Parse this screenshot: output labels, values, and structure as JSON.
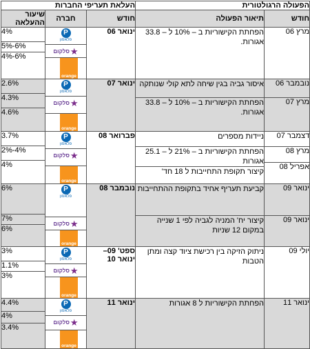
{
  "titles": {
    "regulatory": "הפעולה הרגולטורית",
    "companies": "העלאת תעריפי החברות"
  },
  "headers": {
    "month_right": "חודש",
    "action_desc": "תיאור הפעולה",
    "month_mid": "חודש",
    "company": "חברה",
    "increase_rate": "שיעור ההעלאה"
  },
  "logos": {
    "pele_symbol": "P",
    "pele_text": "פלאפון",
    "cellcom_text": "סלקום",
    "orange_text": "orange"
  },
  "colors": {
    "shade": "#d9d9d9",
    "pelephone": "#0a68b4",
    "cellcom": "#7b2d8b",
    "orange": "#f7941d"
  },
  "groups": [
    {
      "month": "ינואר 06",
      "shaded": false,
      "actions": [
        {
          "month": "מרץ 06",
          "desc": "הפחתת הקישוריות ב – 10% ל – 33.8 אגורות."
        }
      ],
      "rates": [
        "4%",
        "5%-6%",
        "4%-6%"
      ]
    },
    {
      "month": "ינואר 07",
      "shaded": true,
      "actions": [
        {
          "month": "נובמבר 06",
          "desc": "איסור גביה בגין שיחה לתא קולי שנותקה"
        },
        {
          "month": "מרץ 07",
          "desc": "הפחתת הקישוריות ב – 10% ל – 33.8 אגורות."
        }
      ],
      "rates": [
        "2.6%",
        "4.3%",
        "4.6%"
      ]
    },
    {
      "month": "פברואר 08",
      "shaded": false,
      "actions": [
        {
          "month": "דצמבר 07",
          "desc": "ניידות מספרים"
        },
        {
          "month": "מרץ 08",
          "desc": "הפחתת הקישוריות ב – 21% ל – 25.1 אגורות"
        },
        {
          "month": "אפריל 08",
          "desc": "קיצור תקופת התחייבות ל 18 חד'"
        }
      ],
      "rates": [
        "3.7%",
        "2%-4%",
        "4%"
      ]
    },
    {
      "month": "נובמבר 08",
      "shaded": true,
      "actions": [
        {
          "month": "ינואר 09",
          "desc": "קביעת תעריף אחיד בתקופת ההתחייבות"
        },
        {
          "month": "ינואר 09",
          "desc": "קיצור יח' המניה לגביה לפי 1 שנייה במקום 12 שניות"
        }
      ],
      "rates": [
        "6%",
        "7%",
        "6%"
      ]
    },
    {
      "month": "ספט' 09– ינואר 10",
      "shaded": false,
      "actions": [
        {
          "month": "יולי 09",
          "desc": "ניתוק הזיקה בין רכישת ציוד קצה ומתן הטבות"
        }
      ],
      "rates": [
        "3%",
        "1.1%",
        "3%"
      ]
    },
    {
      "month": "ינואר 11",
      "shaded": true,
      "actions": [
        {
          "month": "ינואר 11",
          "desc": "הפחתת הקישוריות ל 8 אגורות"
        }
      ],
      "rates": [
        "4.4%",
        "4%",
        "3.4%"
      ]
    }
  ]
}
